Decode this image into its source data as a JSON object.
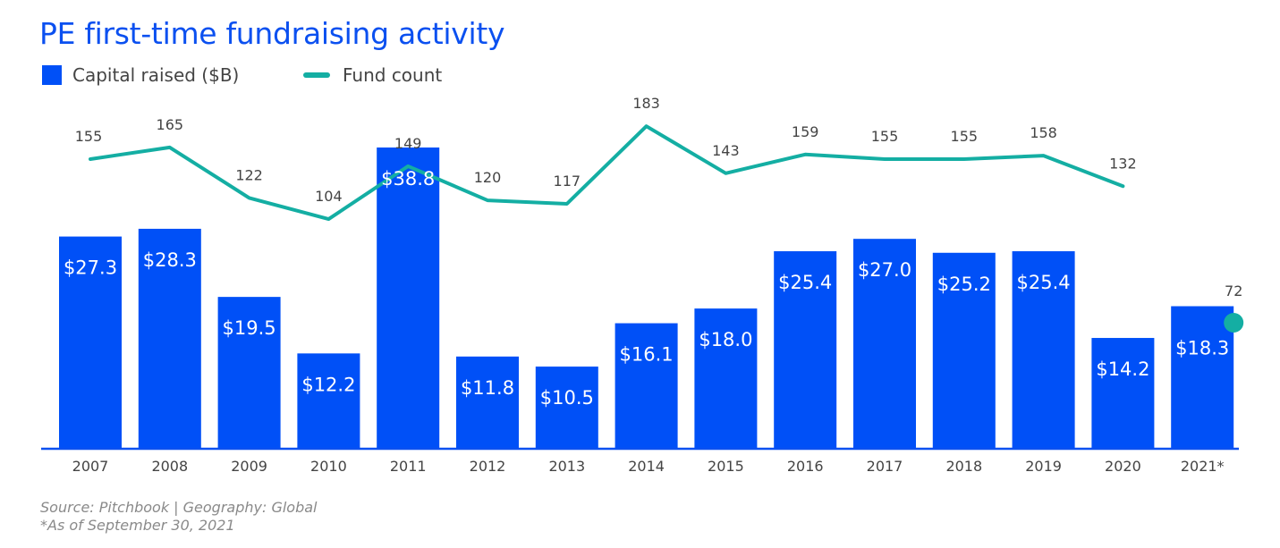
{
  "title": "PE first-time fundraising activity",
  "legend": {
    "bar_label": "Capital raised ($B)",
    "line_label": "Fund count"
  },
  "colors": {
    "title": "#0b50f0",
    "bar": "#0050f7",
    "line": "#14aea3",
    "axis": "#0b50f0",
    "text": "#444444",
    "bar_label": "#ffffff",
    "source": "#8a8a8a"
  },
  "chart_data": {
    "type": "bar",
    "title": "PE first-time fundraising activity",
    "categories": [
      "2007",
      "2008",
      "2009",
      "2010",
      "2011",
      "2012",
      "2013",
      "2014",
      "2015",
      "2016",
      "2017",
      "2018",
      "2019",
      "2020",
      "2021*"
    ],
    "series": [
      {
        "name": "Capital raised ($B)",
        "type": "bar",
        "values": [
          27.3,
          28.3,
          19.5,
          12.2,
          38.8,
          11.8,
          10.5,
          16.1,
          18.0,
          25.4,
          27.0,
          25.2,
          25.4,
          14.2,
          18.3
        ],
        "labels": [
          "$27.3",
          "$28.3",
          "$19.5",
          "$12.2",
          "$38.8",
          "$11.8",
          "$10.5",
          "$16.1",
          "$18.0",
          "$25.4",
          "$27.0",
          "$25.2",
          "$25.4",
          "$14.2",
          "$18.3"
        ]
      },
      {
        "name": "Fund count",
        "type": "line",
        "values": [
          155,
          165,
          122,
          104,
          149,
          120,
          117,
          183,
          143,
          159,
          155,
          155,
          158,
          132,
          72
        ],
        "labels": [
          "155",
          "165",
          "122",
          "104",
          "149",
          "120",
          "117",
          "183",
          "143",
          "159",
          "155",
          "155",
          "158",
          "132",
          "72"
        ],
        "note": "2021* shown as a standalone point"
      }
    ],
    "xlabel": "",
    "ylabel": "",
    "ylim_bar": [
      0,
      38.8
    ],
    "legend_position": "top-left"
  },
  "footer": {
    "source": "Source: Pitchbook | Geography: Global",
    "note": "*As of September 30, 2021"
  }
}
